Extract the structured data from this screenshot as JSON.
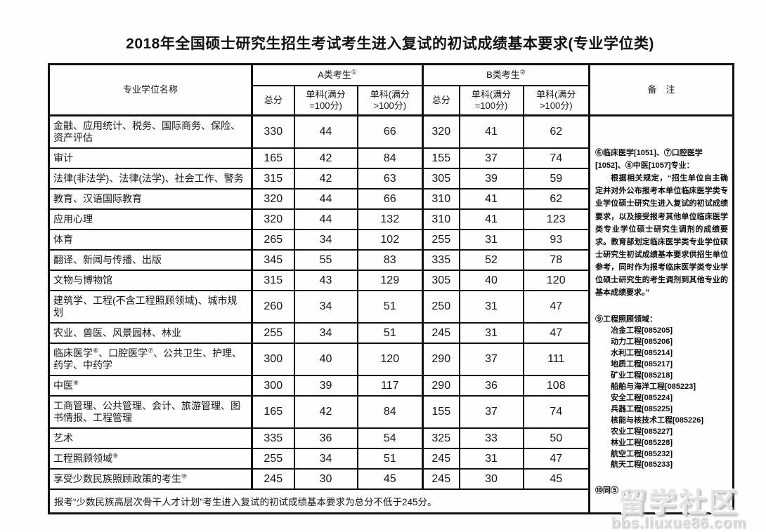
{
  "title": "2018年全国硕士研究生招生考试考生进入复试的初试成绩基本要求(专业学位类)",
  "table": {
    "header": {
      "name_col": "专业学位名称",
      "group_a": {
        "label": "A类考生",
        "sup": "①"
      },
      "group_b": {
        "label": "B类考生",
        "sup": "②"
      },
      "subcols": [
        "总分",
        "单科(满分\n=100分)",
        "单科(满分\n>100分)"
      ],
      "notes_col": "备　注"
    },
    "rows": [
      {
        "name": "金融、应用统计、税务、国际商务、保险、资产评估",
        "a": [
          330,
          44,
          66
        ],
        "b": [
          320,
          41,
          62
        ]
      },
      {
        "name": "审计",
        "a": [
          165,
          42,
          84
        ],
        "b": [
          155,
          37,
          74
        ]
      },
      {
        "name": "法律(非法学)、法律(法学)、社会工作、警务",
        "a": [
          315,
          42,
          63
        ],
        "b": [
          305,
          39,
          59
        ]
      },
      {
        "name": "教育、汉语国际教育",
        "a": [
          320,
          44,
          66
        ],
        "b": [
          310,
          41,
          62
        ]
      },
      {
        "name": "应用心理",
        "a": [
          320,
          44,
          132
        ],
        "b": [
          310,
          41,
          123
        ]
      },
      {
        "name": "体育",
        "a": [
          265,
          34,
          102
        ],
        "b": [
          255,
          31,
          93
        ]
      },
      {
        "name": "翻译、新闻与传播、出版",
        "a": [
          345,
          55,
          83
        ],
        "b": [
          335,
          52,
          78
        ]
      },
      {
        "name": "文物与博物馆",
        "a": [
          315,
          43,
          129
        ],
        "b": [
          305,
          40,
          120
        ]
      },
      {
        "name": "建筑学、工程(不含工程照顾领域)、城市规划",
        "a": [
          260,
          34,
          51
        ],
        "b": [
          250,
          31,
          47
        ]
      },
      {
        "name": "农业、兽医、风景园林、林业",
        "a": [
          255,
          34,
          51
        ],
        "b": [
          245,
          31,
          47
        ]
      },
      {
        "name": "临床医学⑥、口腔医学⑦、公共卫生、护理、药学、中药学",
        "a": [
          300,
          40,
          120
        ],
        "b": [
          290,
          37,
          111
        ]
      },
      {
        "name": "中医⑧",
        "a": [
          300,
          39,
          117
        ],
        "b": [
          290,
          36,
          108
        ]
      },
      {
        "name": "工商管理、公共管理、会计、旅游管理、图书情报、工程管理",
        "a": [
          165,
          42,
          84
        ],
        "b": [
          155,
          37,
          74
        ]
      },
      {
        "name": "艺术",
        "a": [
          335,
          36,
          54
        ],
        "b": [
          325,
          33,
          50
        ]
      },
      {
        "name": "工程照顾领域⑨",
        "a": [
          255,
          34,
          51
        ],
        "b": [
          245,
          31,
          47
        ]
      },
      {
        "name": "享受少数民族照顾政策的考生⑩",
        "a": [
          245,
          30,
          45
        ],
        "b": [
          245,
          30,
          45
        ]
      }
    ],
    "footer": "报考“少数民族高层次骨干人才计划”考生进入复试的初试成绩基本要求为总分不低于245分。"
  },
  "notes": {
    "note678_title": "⑥临床医学[1051]、⑦口腔医学[1052]、⑧中医[1057]专业：",
    "note678_body": "根据相关规定，“招生单位自主确定并对外公布报考本单位临床医学类专业学位硕士研究生进入复试的初试成绩要求，以及接受报考其他单位临床医学类专业学位硕士研究生调剂的成绩要求。教育部划定临床医学类专业学位硕士研究生初试成绩基本要求供招生单位参考，同时作为报考临床医学类专业学位硕士研究生的考生调剂到其他专业的基本成绩要求。”",
    "note9_title": "⑨工程照顾领域：",
    "note9_items": [
      "冶金工程[085205]",
      "动力工程[085206]",
      "水利工程[085214]",
      "地质工程[085217]",
      "矿业工程[085218]",
      "船舶与海洋工程[085223]",
      "安全工程[085224]",
      "兵器工程[085225]",
      "核能与核技术工程[085226]",
      "农业工程[085227]",
      "林业工程[085228]",
      "航空工程[085232]",
      "航天工程[085233]"
    ],
    "note10": "⑩同⑤"
  },
  "watermark": {
    "text": "留学社区",
    "url": "bbs.liuxue86.com"
  }
}
